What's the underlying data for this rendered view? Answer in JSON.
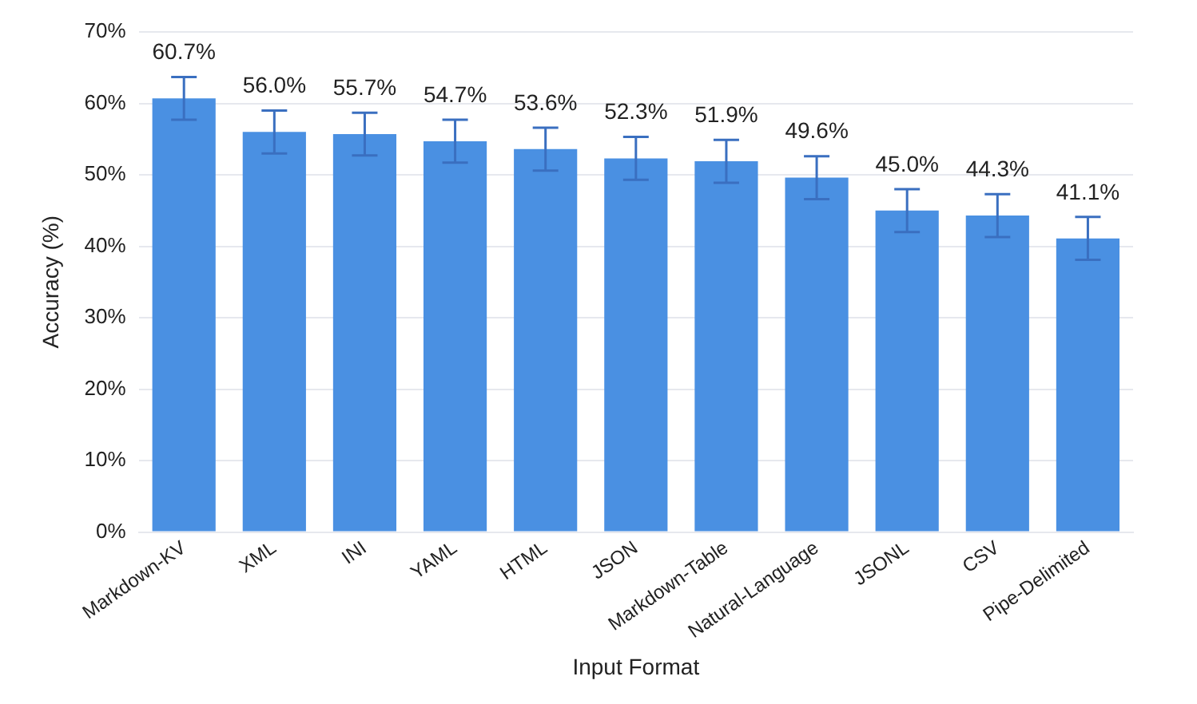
{
  "chart_data": {
    "type": "bar",
    "xlabel": "Input Format",
    "ylabel": "Accuracy (%)",
    "categories": [
      "Markdown-KV",
      "XML",
      "INI",
      "YAML",
      "HTML",
      "JSON",
      "Markdown-Table",
      "Natural-Language",
      "JSONL",
      "CSV",
      "Pipe-Delimited"
    ],
    "series": [
      {
        "color": "#4a90e2",
        "values": [
          60.7,
          56.0,
          55.7,
          54.7,
          53.6,
          52.3,
          51.9,
          49.6,
          45.0,
          44.3,
          41.1
        ],
        "errors": [
          3,
          3,
          3,
          3,
          3,
          3,
          3,
          3,
          3,
          3,
          3
        ]
      }
    ],
    "value_labels": [
      "60.7%",
      "56.0%",
      "55.7%",
      "54.7%",
      "53.6%",
      "52.3%",
      "51.9%",
      "49.6%",
      "45.0%",
      "44.3%",
      "41.1%"
    ],
    "ylim": [
      0,
      70
    ],
    "yticks": [
      {
        "value": 0,
        "label": "0%"
      },
      {
        "value": 10,
        "label": "10%"
      },
      {
        "value": 20,
        "label": "20%"
      },
      {
        "value": 30,
        "label": "30%"
      },
      {
        "value": 40,
        "label": "40%"
      },
      {
        "value": 50,
        "label": "50%"
      },
      {
        "value": 60,
        "label": "60%"
      },
      {
        "value": 70,
        "label": "70%"
      }
    ],
    "grid": "y",
    "legend": false
  }
}
